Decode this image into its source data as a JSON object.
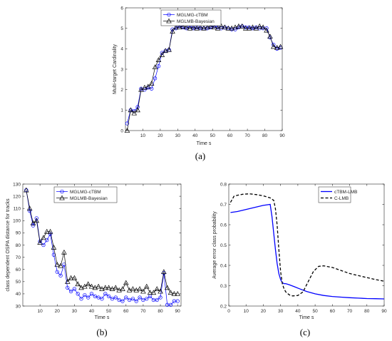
{
  "chart_data": [
    {
      "panel_label": "(a)",
      "type": "line",
      "xlabel": "Time s",
      "ylabel": "Multi-target Cardinality",
      "xlim": [
        0,
        90
      ],
      "ylim": [
        0,
        6
      ],
      "xticks": [
        10,
        20,
        30,
        40,
        50,
        60,
        70,
        80,
        90
      ],
      "yticks": [
        0,
        1,
        2,
        3,
        4,
        5,
        6
      ],
      "legend_position": "top-right",
      "series": [
        {
          "name": "MGLMG-cTBM",
          "color": "#0000ff",
          "marker": "circle",
          "x": [
            1,
            3,
            5,
            7,
            9,
            11,
            13,
            15,
            17,
            19,
            21,
            23,
            25,
            27,
            29,
            31,
            33,
            35,
            37,
            39,
            41,
            43,
            45,
            47,
            49,
            51,
            53,
            55,
            57,
            59,
            61,
            63,
            65,
            67,
            69,
            71,
            73,
            75,
            77,
            79,
            81,
            83,
            85,
            87,
            89
          ],
          "values": [
            0.35,
            1.0,
            0.95,
            1.15,
            2.05,
            2.0,
            2.1,
            2.05,
            2.55,
            3.15,
            3.8,
            3.9,
            3.95,
            4.95,
            5.0,
            5.1,
            5.05,
            5.0,
            5.1,
            5.0,
            5.05,
            5.0,
            5.0,
            5.0,
            5.05,
            5.1,
            5.05,
            5.0,
            5.05,
            5.0,
            4.95,
            4.95,
            5.05,
            5.1,
            5.05,
            5.05,
            5.0,
            5.05,
            5.0,
            5.0,
            5.0,
            4.55,
            4.2,
            4.0,
            4.05
          ]
        },
        {
          "name": "MGLMB-Bayesian",
          "color": "#000000",
          "marker": "triangle",
          "x": [
            1,
            3,
            5,
            7,
            9,
            11,
            13,
            15,
            17,
            19,
            21,
            23,
            25,
            27,
            29,
            31,
            33,
            35,
            37,
            39,
            41,
            43,
            45,
            47,
            49,
            51,
            53,
            55,
            57,
            59,
            61,
            63,
            65,
            67,
            69,
            71,
            73,
            75,
            77,
            79,
            81,
            83,
            85,
            87,
            89
          ],
          "values": [
            0.0,
            1.0,
            0.85,
            1.0,
            2.0,
            2.1,
            2.15,
            2.3,
            3.1,
            3.45,
            3.7,
            3.9,
            3.95,
            4.85,
            5.05,
            5.05,
            5.1,
            5.05,
            5.0,
            5.05,
            5.0,
            5.05,
            5.0,
            5.05,
            5.1,
            5.05,
            5.0,
            5.1,
            5.05,
            5.0,
            5.0,
            5.05,
            5.1,
            5.1,
            5.0,
            5.0,
            5.05,
            5.0,
            5.1,
            5.05,
            4.9,
            4.6,
            4.1,
            4.05,
            4.1
          ]
        }
      ]
    },
    {
      "panel_label": "(b)",
      "type": "line",
      "xlabel": "Time s",
      "ylabel": "class dependent OSPA distance for tracks",
      "xlim": [
        0,
        92
      ],
      "ylim": [
        30,
        130
      ],
      "xticks": [
        10,
        20,
        30,
        40,
        50,
        60,
        70,
        80,
        90
      ],
      "yticks": [
        30,
        40,
        50,
        60,
        70,
        80,
        90,
        100,
        110,
        120,
        130
      ],
      "legend_position": "top-right",
      "series": [
        {
          "name": "MGLMG-cTBM",
          "color": "#0000ff",
          "marker": "circle",
          "x": [
            2,
            4,
            6,
            8,
            10,
            12,
            14,
            16,
            18,
            20,
            22,
            24,
            26,
            28,
            30,
            32,
            34,
            36,
            38,
            40,
            42,
            44,
            46,
            48,
            50,
            52,
            54,
            56,
            58,
            60,
            62,
            64,
            66,
            68,
            70,
            72,
            74,
            76,
            78,
            80,
            82,
            84,
            86,
            88,
            90
          ],
          "values": [
            125,
            108,
            96,
            102,
            83,
            80,
            84,
            89,
            72,
            58,
            55,
            64,
            45,
            42,
            44,
            40,
            36,
            39,
            37,
            40,
            38,
            37,
            36,
            40,
            38,
            36,
            37,
            35,
            34,
            37,
            35,
            36,
            34,
            37,
            35,
            36,
            38,
            35,
            35,
            37,
            57,
            31,
            31,
            34,
            34
          ]
        },
        {
          "name": "MGLMB-Bayesian",
          "color": "#000000",
          "marker": "triangle",
          "x": [
            2,
            4,
            6,
            8,
            10,
            12,
            14,
            16,
            18,
            20,
            22,
            24,
            26,
            28,
            30,
            32,
            34,
            36,
            38,
            40,
            42,
            44,
            46,
            48,
            50,
            52,
            54,
            56,
            58,
            60,
            62,
            64,
            66,
            68,
            70,
            72,
            74,
            76,
            78,
            80,
            82,
            84,
            86,
            88,
            90
          ],
          "values": [
            125,
            110,
            98,
            100,
            82,
            86,
            91,
            91,
            78,
            64,
            63,
            74,
            50,
            53,
            53,
            48,
            45,
            46,
            48,
            46,
            45,
            46,
            44,
            45,
            45,
            44,
            45,
            43,
            44,
            49,
            43,
            44,
            43,
            44,
            42,
            46,
            41,
            41,
            44,
            42,
            58,
            45,
            41,
            40,
            40
          ]
        }
      ]
    },
    {
      "panel_label": "(c)",
      "type": "line",
      "xlabel": "Time s",
      "ylabel": "Average error class probability",
      "xlim": [
        0,
        90
      ],
      "ylim": [
        0.2,
        0.8
      ],
      "xticks": [
        0,
        10,
        20,
        30,
        40,
        50,
        60,
        70,
        80,
        90
      ],
      "yticks": [
        0.2,
        0.3,
        0.4,
        0.5,
        0.6,
        0.7,
        0.8
      ],
      "legend_position": "top-right",
      "series": [
        {
          "name": "cTBM-LMB",
          "color": "#0000ff",
          "style": "solid",
          "x": [
            1,
            5,
            10,
            15,
            20,
            24,
            25,
            26,
            27,
            28,
            29,
            30,
            31,
            32,
            33,
            35,
            38,
            41,
            45,
            50,
            55,
            60,
            65,
            70,
            75,
            80,
            85,
            90
          ],
          "values": [
            0.66,
            0.665,
            0.675,
            0.685,
            0.695,
            0.7,
            0.64,
            0.56,
            0.48,
            0.41,
            0.36,
            0.33,
            0.315,
            0.31,
            0.31,
            0.305,
            0.295,
            0.285,
            0.272,
            0.26,
            0.252,
            0.247,
            0.244,
            0.241,
            0.239,
            0.237,
            0.236,
            0.235
          ]
        },
        {
          "name": "C-LMB",
          "color": "#000000",
          "style": "dashed",
          "x": [
            1,
            3,
            5,
            8,
            12,
            16,
            20,
            24,
            26,
            27,
            28,
            29,
            30,
            31,
            32,
            33,
            35,
            37,
            40,
            43,
            46,
            49,
            52,
            55,
            60,
            65,
            70,
            75,
            80,
            85,
            90
          ],
          "values": [
            0.71,
            0.74,
            0.745,
            0.75,
            0.752,
            0.748,
            0.742,
            0.732,
            0.72,
            0.68,
            0.6,
            0.48,
            0.37,
            0.31,
            0.285,
            0.27,
            0.255,
            0.25,
            0.252,
            0.27,
            0.32,
            0.37,
            0.395,
            0.398,
            0.39,
            0.375,
            0.36,
            0.35,
            0.34,
            0.33,
            0.322
          ]
        }
      ]
    }
  ]
}
